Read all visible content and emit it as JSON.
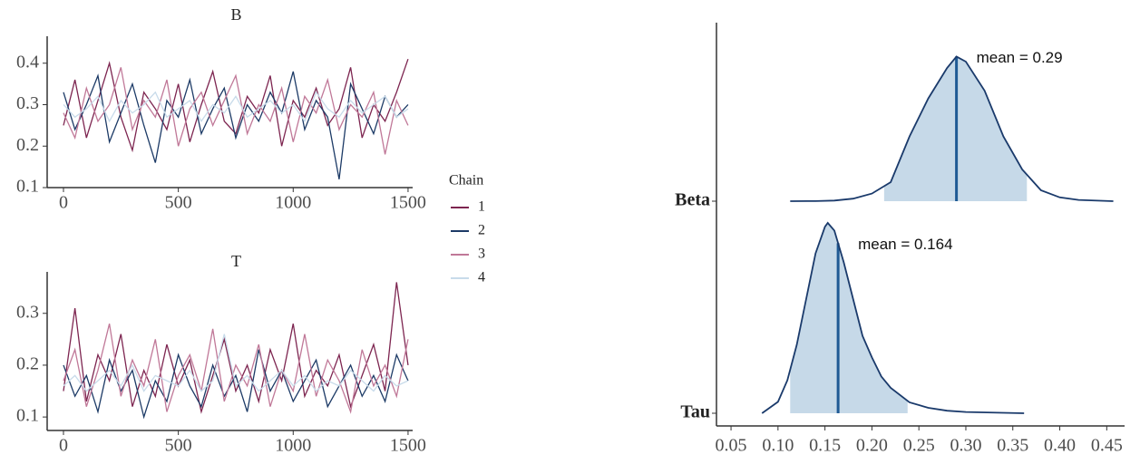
{
  "chart_data": [
    {
      "type": "trace",
      "title": "B",
      "legend_title": "Chain",
      "x": [
        0,
        50,
        100,
        150,
        200,
        250,
        300,
        350,
        400,
        450,
        500,
        550,
        600,
        650,
        700,
        750,
        800,
        850,
        900,
        950,
        1000,
        1050,
        1100,
        1150,
        1200,
        1250,
        1300,
        1350,
        1400,
        1450,
        1500
      ],
      "xlim": [
        -71,
        1520
      ],
      "xticks": [
        0,
        500,
        1000,
        1500
      ],
      "ylim": [
        0.1,
        0.465
      ],
      "yticks": [
        0.1,
        0.2,
        0.3,
        0.4
      ],
      "series": [
        {
          "name": "1",
          "color": "#7d2550",
          "values": [
            0.25,
            0.36,
            0.22,
            0.31,
            0.4,
            0.27,
            0.19,
            0.33,
            0.29,
            0.24,
            0.35,
            0.21,
            0.3,
            0.38,
            0.26,
            0.23,
            0.32,
            0.28,
            0.37,
            0.2,
            0.31,
            0.27,
            0.34,
            0.25,
            0.29,
            0.39,
            0.22,
            0.3,
            0.26,
            0.33,
            0.41
          ]
        },
        {
          "name": "2",
          "color": "#1c3a66",
          "values": [
            0.33,
            0.24,
            0.3,
            0.37,
            0.21,
            0.28,
            0.35,
            0.25,
            0.16,
            0.31,
            0.27,
            0.36,
            0.23,
            0.29,
            0.34,
            0.22,
            0.3,
            0.26,
            0.33,
            0.28,
            0.38,
            0.24,
            0.31,
            0.27,
            0.12,
            0.35,
            0.29,
            0.23,
            0.32,
            0.27,
            0.3
          ]
        },
        {
          "name": "3",
          "color": "#c07898",
          "values": [
            0.28,
            0.22,
            0.34,
            0.26,
            0.3,
            0.39,
            0.24,
            0.31,
            0.27,
            0.36,
            0.2,
            0.29,
            0.33,
            0.25,
            0.31,
            0.37,
            0.23,
            0.3,
            0.26,
            0.34,
            0.21,
            0.32,
            0.28,
            0.36,
            0.24,
            0.3,
            0.27,
            0.33,
            0.18,
            0.31,
            0.25
          ]
        },
        {
          "name": "4",
          "color": "#c8dbea",
          "values": [
            0.3,
            0.27,
            0.29,
            0.32,
            0.26,
            0.31,
            0.28,
            0.3,
            0.33,
            0.27,
            0.29,
            0.31,
            0.26,
            0.3,
            0.28,
            0.32,
            0.27,
            0.29,
            0.31,
            0.28,
            0.3,
            0.26,
            0.33,
            0.29,
            0.27,
            0.31,
            0.28,
            0.3,
            0.32,
            0.27,
            0.29
          ]
        }
      ]
    },
    {
      "type": "trace",
      "title": "T",
      "x": [
        0,
        50,
        100,
        150,
        200,
        250,
        300,
        350,
        400,
        450,
        500,
        550,
        600,
        650,
        700,
        750,
        800,
        850,
        900,
        950,
        1000,
        1050,
        1100,
        1150,
        1200,
        1250,
        1300,
        1350,
        1400,
        1450,
        1500
      ],
      "xlim": [
        -71,
        1520
      ],
      "xticks": [
        0,
        500,
        1000,
        1500
      ],
      "ylim": [
        0.074,
        0.38
      ],
      "yticks": [
        0.1,
        0.2,
        0.3
      ],
      "series": [
        {
          "color": "#7d2550",
          "values": [
            0.15,
            0.31,
            0.13,
            0.22,
            0.17,
            0.26,
            0.12,
            0.19,
            0.14,
            0.24,
            0.16,
            0.21,
            0.11,
            0.18,
            0.25,
            0.15,
            0.2,
            0.13,
            0.23,
            0.17,
            0.28,
            0.14,
            0.19,
            0.16,
            0.22,
            0.12,
            0.18,
            0.24,
            0.15,
            0.36,
            0.2
          ]
        },
        {
          "color": "#1c3a66",
          "values": [
            0.2,
            0.14,
            0.18,
            0.11,
            0.21,
            0.15,
            0.19,
            0.1,
            0.17,
            0.13,
            0.22,
            0.16,
            0.12,
            0.2,
            0.14,
            0.18,
            0.11,
            0.23,
            0.15,
            0.19,
            0.13,
            0.17,
            0.21,
            0.12,
            0.16,
            0.2,
            0.14,
            0.18,
            0.13,
            0.22,
            0.17
          ]
        },
        {
          "color": "#c07898",
          "values": [
            0.17,
            0.23,
            0.12,
            0.19,
            0.28,
            0.14,
            0.21,
            0.16,
            0.25,
            0.11,
            0.18,
            0.22,
            0.15,
            0.27,
            0.13,
            0.2,
            0.16,
            0.24,
            0.12,
            0.19,
            0.15,
            0.26,
            0.14,
            0.21,
            0.17,
            0.11,
            0.23,
            0.16,
            0.2,
            0.14,
            0.25
          ]
        },
        {
          "color": "#c8dbea",
          "values": [
            0.16,
            0.18,
            0.15,
            0.17,
            0.19,
            0.16,
            0.2,
            0.15,
            0.18,
            0.17,
            0.16,
            0.19,
            0.15,
            0.17,
            0.26,
            0.16,
            0.18,
            0.15,
            0.17,
            0.19,
            0.16,
            0.18,
            0.15,
            0.17,
            0.16,
            0.19,
            0.17,
            0.15,
            0.18,
            0.16,
            0.17
          ]
        }
      ]
    },
    {
      "type": "ridge",
      "categories": [
        "Beta",
        "Tau"
      ],
      "xlim": [
        0.0345,
        0.469
      ],
      "xticks": [
        0.05,
        {
          "value": 0.1,
          "label": "0.10"
        },
        0.15,
        {
          "value": 0.2,
          "label": "0.20"
        },
        0.25,
        {
          "value": 0.3,
          "label": "0.30"
        },
        0.35,
        {
          "value": 0.4,
          "label": "0.40"
        },
        0.45
      ],
      "fill_color": "#c6d9e8",
      "line_color": "#1a3a6b",
      "mean_color": "#1f5a94",
      "series": [
        {
          "x": [
            0.113,
            0.14,
            0.16,
            0.18,
            0.2,
            0.22,
            0.24,
            0.26,
            0.28,
            0.29,
            0.3,
            0.32,
            0.34,
            0.36,
            0.38,
            0.4,
            0.42,
            0.457
          ],
          "values": [
            0,
            0.01,
            0.05,
            0.2,
            0.6,
            1.5,
            5.1,
            8.1,
            10.5,
            11.4,
            11,
            8.7,
            5.1,
            2.5,
            0.86,
            0.3,
            0.1,
            0
          ],
          "interval": [
            0.213,
            0.365
          ],
          "mean": 0.29,
          "mean_label": "mean = 0.29"
        },
        {
          "x": [
            0.083,
            0.1,
            0.11,
            0.12,
            0.13,
            0.14,
            0.15,
            0.153,
            0.16,
            0.17,
            0.18,
            0.19,
            0.2,
            0.21,
            0.22,
            0.24,
            0.26,
            0.28,
            0.3,
            0.362
          ],
          "values": [
            0,
            0.9,
            2.6,
            5.4,
            9,
            12.6,
            14.7,
            15,
            14.4,
            11.9,
            9,
            6.1,
            4.4,
            2.9,
            2,
            0.86,
            0.43,
            0.2,
            0.1,
            0
          ],
          "interval": [
            0.113,
            0.238
          ],
          "mean": 0.164,
          "mean_label": "mean = 0.164"
        }
      ]
    }
  ]
}
